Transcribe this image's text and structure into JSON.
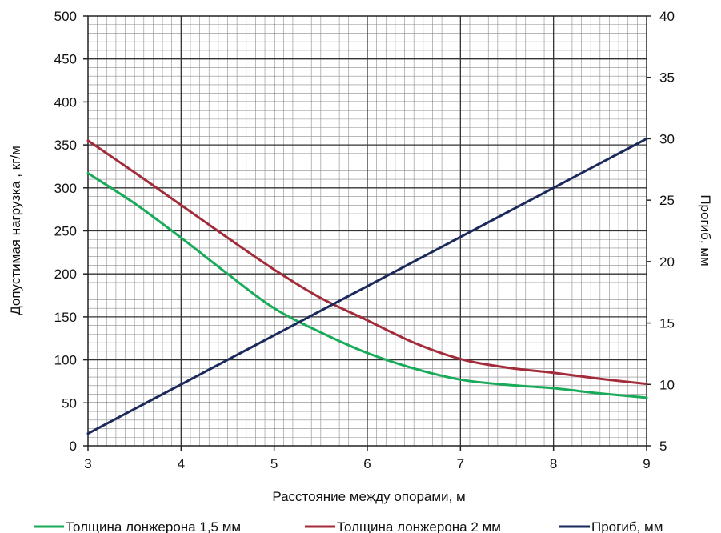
{
  "chart_data": {
    "type": "line",
    "x": [
      3,
      3.5,
      4,
      4.5,
      5,
      5.5,
      6,
      6.5,
      7,
      7.5,
      8,
      8.5,
      9
    ],
    "xlabel": "Расстояние между опорами, м",
    "xlim": [
      3,
      9
    ],
    "xticks": [
      "3",
      "4",
      "5",
      "6",
      "7",
      "8",
      "9"
    ],
    "ylabel": "Допустимая нагрузка ,  кг/м",
    "ylim": [
      0,
      500
    ],
    "yticks": [
      "0",
      "50",
      "100",
      "150",
      "200",
      "250",
      "300",
      "350",
      "400",
      "450",
      "500"
    ],
    "y2label": "Прогиб, мм",
    "y2lim": [
      5,
      40
    ],
    "y2ticks": [
      "5",
      "10",
      "15",
      "20",
      "25",
      "30",
      "35",
      "40"
    ],
    "grid": true,
    "legend_position": "bottom",
    "series": [
      {
        "name": "Толщина лонжерона 1,5 мм",
        "axis": "left",
        "color": "#1aab5a",
        "values": [
          317,
          282,
          242,
          200,
          160,
          132,
          108,
          90,
          77,
          71,
          67,
          61,
          56
        ]
      },
      {
        "name": "Толщина лонжерона  2 мм",
        "axis": "left",
        "color": "#a42c3a",
        "values": [
          355,
          318,
          280,
          242,
          205,
          172,
          146,
          120,
          101,
          91,
          85,
          78,
          72
        ]
      },
      {
        "name": "Прогиб, мм",
        "axis": "right",
        "color": "#1b2a5c",
        "values": [
          6.0,
          8.0,
          10.0,
          12.0,
          14.0,
          16.0,
          18.0,
          20.0,
          22.0,
          24.0,
          26.0,
          28.0,
          30.0
        ]
      }
    ]
  }
}
